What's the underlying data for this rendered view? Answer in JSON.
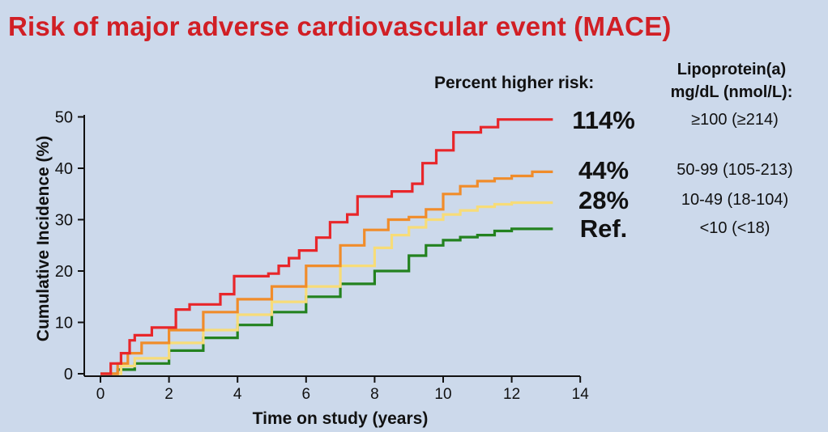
{
  "title": "Risk of major adverse cardiovascular event (MACE)",
  "header": {
    "percent_label": "Percent higher risk:",
    "lpa_line1": "Lipoprotein(a)",
    "lpa_line2": "mg/dL (nmol/L):"
  },
  "colors": {
    "background": "#ccd9eb",
    "title": "#d11f25",
    "red": "#e8262a",
    "orange": "#f08c2a",
    "yellow": "#f7dc78",
    "green": "#23821f"
  },
  "chart_data": {
    "type": "line",
    "step": true,
    "title": "Risk of major adverse cardiovascular event (MACE)",
    "xlabel": "Time on study (years)",
    "ylabel": "Cumulative Incidence (%)",
    "xlim": [
      0,
      14
    ],
    "ylim": [
      0,
      50
    ],
    "xticks": [
      "0",
      "2",
      "4",
      "6",
      "8",
      "10",
      "12",
      "14"
    ],
    "yticks": [
      "0",
      "10",
      "20",
      "30",
      "40",
      "50"
    ],
    "grid": false,
    "series": [
      {
        "name": "≥100 (≥214)",
        "percent": "114%",
        "lpa": "≥100 (≥214)",
        "color_key": "red",
        "x": [
          0,
          0.3,
          0.6,
          0.85,
          1.0,
          1.5,
          2.2,
          2.6,
          3.5,
          3.9,
          4.9,
          5.2,
          5.5,
          5.8,
          6.3,
          6.7,
          7.2,
          7.5,
          8.5,
          9.1,
          9.4,
          9.8,
          10.3,
          11.1,
          11.6,
          12.3,
          13.2
        ],
        "y": [
          0,
          2,
          4,
          6.5,
          7.5,
          9,
          12.5,
          13.5,
          15.5,
          19,
          19.5,
          21,
          22.5,
          24,
          26.5,
          29.5,
          31,
          34.5,
          35.5,
          37,
          41,
          43.5,
          47,
          48,
          49.5,
          49.5,
          49.5
        ]
      },
      {
        "name": "50-99 (105-213)",
        "percent": "44%",
        "lpa": "50-99 (105-213)",
        "color_key": "orange",
        "x": [
          0,
          0.5,
          0.8,
          1.2,
          2.0,
          3.0,
          4.0,
          5.0,
          6.0,
          7.0,
          7.7,
          8.4,
          9.0,
          9.5,
          10.0,
          10.5,
          11.0,
          11.5,
          12.0,
          12.6,
          13.2
        ],
        "y": [
          0,
          2,
          4,
          6,
          8.5,
          12,
          14.5,
          17,
          21,
          25,
          28,
          30,
          30.5,
          32,
          35,
          36.5,
          37.5,
          38,
          38.5,
          39.3,
          39.3
        ]
      },
      {
        "name": "10-49 (18-104)",
        "percent": "28%",
        "lpa": "10-49 (18-104)",
        "color_key": "yellow",
        "x": [
          0,
          0.6,
          1.0,
          2.0,
          3.0,
          4.0,
          5.0,
          6.0,
          7.0,
          8.0,
          8.5,
          9.0,
          9.5,
          10.0,
          10.5,
          11.0,
          11.5,
          12.0,
          12.5,
          13.2
        ],
        "y": [
          0,
          1.5,
          3,
          6,
          8.5,
          11.5,
          14,
          17,
          21,
          24.5,
          27,
          28.5,
          30,
          31,
          31.8,
          32.5,
          33,
          33.3,
          33.3,
          33.3
        ]
      },
      {
        "name": "<10 (<18)",
        "percent": "Ref.",
        "lpa": "<10 (<18)",
        "color_key": "green",
        "x": [
          0,
          0.5,
          1.0,
          2.0,
          3.0,
          4.0,
          5.0,
          6.0,
          7.0,
          8.0,
          9.0,
          9.5,
          10.0,
          10.5,
          11.0,
          11.5,
          12.0,
          13.2
        ],
        "y": [
          0,
          0.8,
          2,
          4.5,
          7,
          9.5,
          12,
          15,
          17.5,
          20,
          23,
          25,
          26,
          26.6,
          27,
          27.8,
          28.2,
          28.2
        ]
      }
    ]
  }
}
